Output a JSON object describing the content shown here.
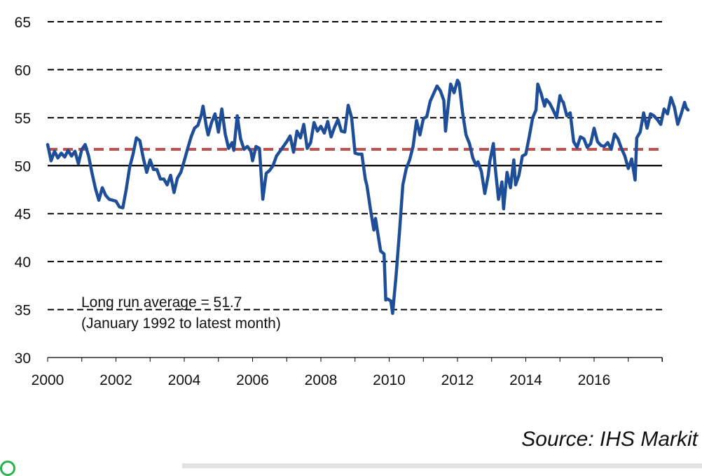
{
  "chart_data": {
    "type": "line",
    "title": "",
    "xlabel": "",
    "ylabel": "",
    "xlim": [
      2000,
      2017.95
    ],
    "ylim": [
      30,
      65
    ],
    "yticks": [
      30,
      35,
      40,
      45,
      50,
      55,
      60,
      65
    ],
    "xticks": [
      2000,
      2002,
      2004,
      2006,
      2008,
      2010,
      2012,
      2014,
      2016
    ],
    "grid": "horizontal dashed",
    "series": [
      {
        "name": "",
        "color": "#1f4e99",
        "points": [
          [
            2000.0,
            52.2
          ],
          [
            2000.1,
            50.5
          ],
          [
            2000.2,
            51.5
          ],
          [
            2000.3,
            50.8
          ],
          [
            2000.4,
            51.3
          ],
          [
            2000.5,
            50.9
          ],
          [
            2000.6,
            51.6
          ],
          [
            2000.7,
            51.0
          ],
          [
            2000.8,
            51.5
          ],
          [
            2000.9,
            50.2
          ],
          [
            2001.0,
            51.7
          ],
          [
            2001.1,
            52.2
          ],
          [
            2001.2,
            51.0
          ],
          [
            2001.3,
            49.2
          ],
          [
            2001.4,
            47.6
          ],
          [
            2001.5,
            46.4
          ],
          [
            2001.6,
            47.7
          ],
          [
            2001.7,
            46.9
          ],
          [
            2001.8,
            46.5
          ],
          [
            2001.9,
            46.4
          ],
          [
            2002.0,
            46.3
          ],
          [
            2002.1,
            45.7
          ],
          [
            2002.2,
            45.6
          ],
          [
            2002.3,
            47.5
          ],
          [
            2002.4,
            49.8
          ],
          [
            2002.5,
            51.2
          ],
          [
            2002.6,
            52.9
          ],
          [
            2002.7,
            52.6
          ],
          [
            2002.8,
            50.8
          ],
          [
            2002.9,
            49.3
          ],
          [
            2003.0,
            50.6
          ],
          [
            2003.1,
            49.6
          ],
          [
            2003.2,
            49.6
          ],
          [
            2003.3,
            48.6
          ],
          [
            2003.4,
            48.6
          ],
          [
            2003.5,
            48.0
          ],
          [
            2003.6,
            49.0
          ],
          [
            2003.7,
            47.2
          ],
          [
            2003.8,
            48.7
          ],
          [
            2003.9,
            49.3
          ],
          [
            2004.0,
            50.5
          ],
          [
            2004.1,
            51.8
          ],
          [
            2004.2,
            53.0
          ],
          [
            2004.3,
            53.9
          ],
          [
            2004.4,
            54.2
          ],
          [
            2004.5,
            55.3
          ],
          [
            2004.55,
            56.2
          ],
          [
            2004.65,
            54.0
          ],
          [
            2004.7,
            53.2
          ],
          [
            2004.8,
            54.5
          ],
          [
            2004.9,
            55.4
          ],
          [
            2005.0,
            53.5
          ],
          [
            2005.1,
            55.9
          ],
          [
            2005.2,
            53.3
          ],
          [
            2005.3,
            51.8
          ],
          [
            2005.4,
            52.4
          ],
          [
            2005.45,
            51.6
          ],
          [
            2005.55,
            55.2
          ],
          [
            2005.65,
            52.8
          ],
          [
            2005.75,
            51.7
          ],
          [
            2005.85,
            52.0
          ],
          [
            2005.95,
            51.5
          ],
          [
            2006.0,
            50.5
          ],
          [
            2006.1,
            52.0
          ],
          [
            2006.2,
            51.8
          ],
          [
            2006.3,
            46.5
          ],
          [
            2006.4,
            49.2
          ],
          [
            2006.5,
            49.5
          ],
          [
            2006.6,
            50.0
          ],
          [
            2006.7,
            51.0
          ],
          [
            2006.8,
            51.5
          ],
          [
            2006.9,
            52.0
          ],
          [
            2007.0,
            52.5
          ],
          [
            2007.1,
            53.1
          ],
          [
            2007.2,
            51.4
          ],
          [
            2007.3,
            53.6
          ],
          [
            2007.4,
            52.9
          ],
          [
            2007.5,
            54.3
          ],
          [
            2007.6,
            51.8
          ],
          [
            2007.7,
            52.4
          ],
          [
            2007.8,
            54.5
          ],
          [
            2007.9,
            53.6
          ],
          [
            2008.0,
            54.1
          ],
          [
            2008.1,
            53.4
          ],
          [
            2008.2,
            54.6
          ],
          [
            2008.3,
            53.0
          ],
          [
            2008.4,
            54.0
          ],
          [
            2008.5,
            54.8
          ],
          [
            2008.6,
            53.6
          ],
          [
            2008.7,
            53.5
          ],
          [
            2008.8,
            56.3
          ],
          [
            2008.9,
            55.0
          ],
          [
            2009.0,
            51.3
          ],
          [
            2009.1,
            51.2
          ],
          [
            2009.2,
            51.2
          ],
          [
            2009.3,
            48.6
          ],
          [
            2009.35,
            47.9
          ],
          [
            2009.45,
            45.5
          ],
          [
            2009.55,
            43.3
          ],
          [
            2009.6,
            44.5
          ],
          [
            2009.7,
            42.2
          ],
          [
            2009.75,
            41.1
          ],
          [
            2009.85,
            40.8
          ],
          [
            2009.9,
            36.0
          ],
          [
            2009.95,
            36.1
          ],
          [
            2010.05,
            35.9
          ],
          [
            2010.1,
            34.6
          ],
          [
            2010.2,
            38.5
          ],
          [
            2010.3,
            43.0
          ],
          [
            2010.4,
            48.0
          ],
          [
            2010.5,
            49.7
          ],
          [
            2010.6,
            50.6
          ],
          [
            2010.7,
            52.0
          ],
          [
            2010.8,
            54.7
          ],
          [
            2010.9,
            53.2
          ],
          [
            2011.0,
            54.9
          ],
          [
            2011.1,
            55.1
          ],
          [
            2011.2,
            56.7
          ],
          [
            2011.3,
            57.5
          ],
          [
            2011.4,
            58.3
          ],
          [
            2011.5,
            57.8
          ],
          [
            2011.6,
            56.8
          ],
          [
            2011.65,
            53.6
          ],
          [
            2011.75,
            57.0
          ],
          [
            2011.8,
            58.5
          ],
          [
            2011.9,
            57.6
          ],
          [
            2012.0,
            58.9
          ],
          [
            2012.05,
            58.6
          ],
          [
            2012.15,
            55.5
          ],
          [
            2012.25,
            53.2
          ],
          [
            2012.35,
            52.3
          ],
          [
            2012.45,
            50.8
          ],
          [
            2012.55,
            50.0
          ],
          [
            2012.6,
            50.4
          ],
          [
            2012.7,
            49.4
          ],
          [
            2012.8,
            47.1
          ],
          [
            2012.9,
            49.0
          ],
          [
            2012.95,
            50.5
          ],
          [
            2013.05,
            52.3
          ],
          [
            2013.1,
            50.0
          ],
          [
            2013.2,
            46.5
          ],
          [
            2013.3,
            48.3
          ],
          [
            2013.35,
            45.5
          ],
          [
            2013.45,
            49.3
          ],
          [
            2013.55,
            47.7
          ],
          [
            2013.65,
            50.6
          ],
          [
            2013.7,
            48.0
          ],
          [
            2013.8,
            49.0
          ],
          [
            2013.9,
            51.0
          ],
          [
            2014.0,
            51.2
          ],
          [
            2014.1,
            53.0
          ],
          [
            2014.2,
            55.0
          ],
          [
            2014.3,
            55.8
          ],
          [
            2014.35,
            58.5
          ],
          [
            2014.45,
            57.5
          ],
          [
            2014.55,
            56.2
          ],
          [
            2014.6,
            56.9
          ],
          [
            2014.7,
            56.5
          ],
          [
            2014.8,
            55.8
          ],
          [
            2014.9,
            55.0
          ],
          [
            2015.0,
            57.3
          ],
          [
            2015.05,
            56.8
          ],
          [
            2015.1,
            56.6
          ],
          [
            2015.2,
            55.2
          ],
          [
            2015.3,
            55.5
          ],
          [
            2015.4,
            52.5
          ],
          [
            2015.5,
            51.9
          ],
          [
            2015.6,
            53.0
          ],
          [
            2015.7,
            52.8
          ],
          [
            2015.8,
            51.9
          ],
          [
            2015.9,
            52.3
          ],
          [
            2016.0,
            53.9
          ],
          [
            2016.1,
            52.5
          ],
          [
            2016.2,
            52.1
          ],
          [
            2016.3,
            52.0
          ],
          [
            2016.4,
            52.4
          ],
          [
            2016.5,
            51.7
          ],
          [
            2016.6,
            53.3
          ],
          [
            2016.7,
            52.8
          ],
          [
            2016.8,
            51.8
          ],
          [
            2016.9,
            51.0
          ],
          [
            2017.0,
            49.7
          ],
          [
            2017.1,
            50.7
          ],
          [
            2017.2,
            48.5
          ],
          [
            2017.25,
            52.9
          ],
          [
            2017.35,
            53.5
          ],
          [
            2017.45,
            55.5
          ],
          [
            2017.55,
            53.9
          ],
          [
            2017.65,
            55.4
          ],
          [
            2017.75,
            55.2
          ],
          [
            2017.85,
            54.8
          ],
          [
            2017.95,
            54.3
          ],
          [
            2018.05,
            55.9
          ],
          [
            2018.15,
            55.4
          ],
          [
            2018.25,
            57.1
          ],
          [
            2018.35,
            56.1
          ],
          [
            2018.45,
            54.3
          ],
          [
            2018.55,
            55.4
          ],
          [
            2018.65,
            56.6
          ],
          [
            2018.7,
            56.0
          ],
          [
            2018.75,
            55.8
          ]
        ]
      }
    ],
    "reference_line": {
      "value": 51.7,
      "color": "#c0504d",
      "style": "dashed"
    },
    "annotation": [
      "Long run average = 51.7",
      "(January 1992 to latest month)"
    ],
    "source": "Source: IHS Markit"
  }
}
